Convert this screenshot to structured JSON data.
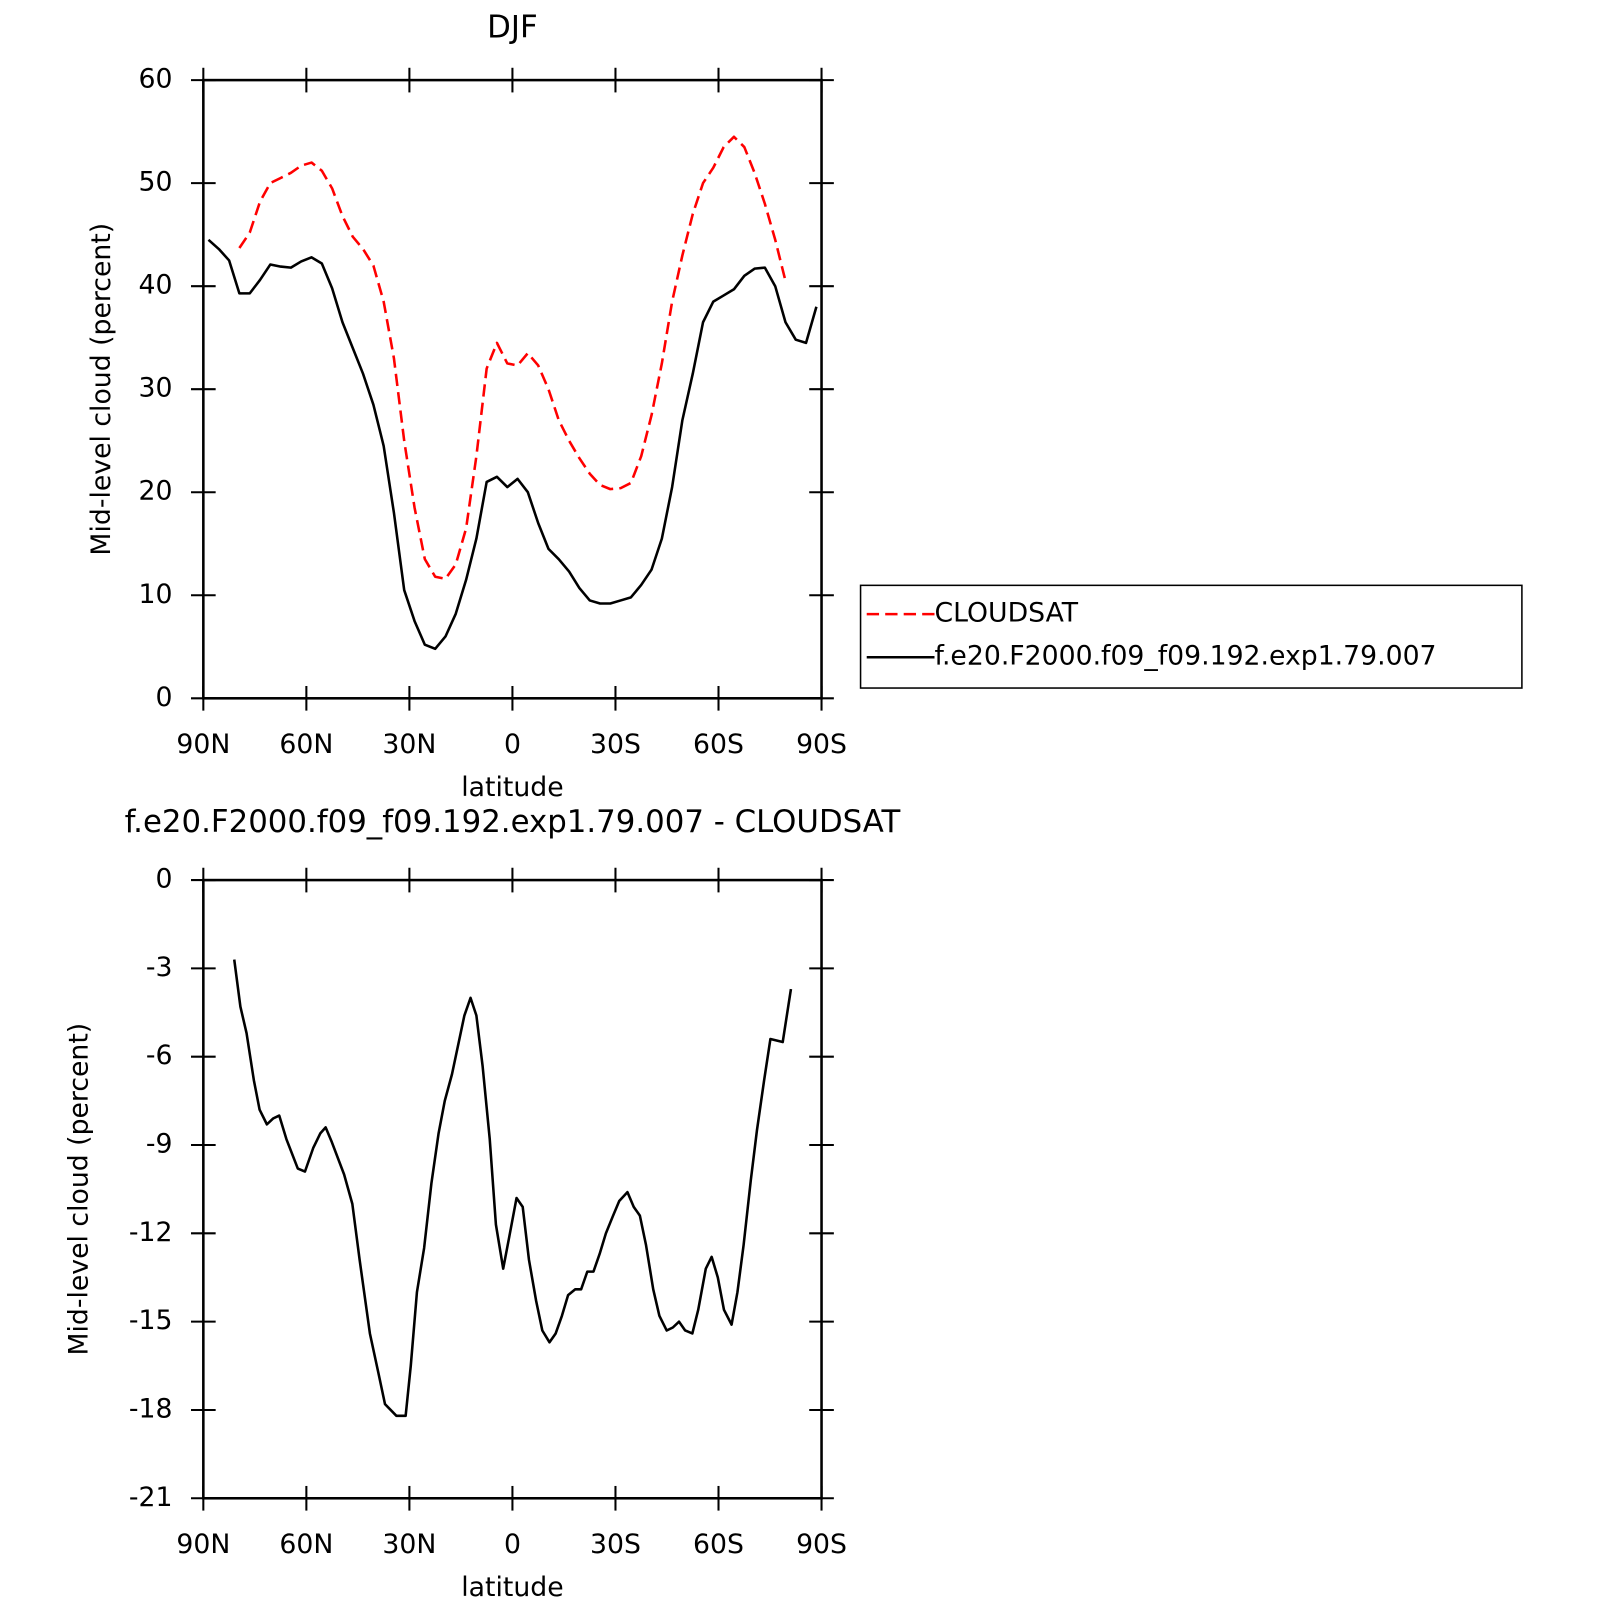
{
  "chart_data": [
    {
      "type": "line",
      "title": "DJF",
      "xlabel": "latitude",
      "ylabel": "Mid-level cloud (percent)",
      "xlim": [
        90,
        -90
      ],
      "xticks": [
        {
          "value": 90,
          "label": "90N"
        },
        {
          "value": 60,
          "label": "60N"
        },
        {
          "value": 30,
          "label": "30N"
        },
        0,
        {
          "value": -30,
          "label": "30S"
        },
        {
          "value": -60,
          "label": "60S"
        },
        {
          "value": -90,
          "label": "90S"
        }
      ],
      "ylim": [
        0,
        60
      ],
      "yticks": [
        0,
        10,
        20,
        30,
        40,
        50,
        60
      ],
      "legend_position": "right",
      "x": [
        88.5,
        85.5,
        82.5,
        79.5,
        76.5,
        73.5,
        70.5,
        67.5,
        64.5,
        61.5,
        58.5,
        55.5,
        52.5,
        49.5,
        46.5,
        43.5,
        40.5,
        37.5,
        34.5,
        31.5,
        28.5,
        25.5,
        22.5,
        19.5,
        16.5,
        13.5,
        10.5,
        7.5,
        4.5,
        1.5,
        -1.5,
        -4.5,
        -7.5,
        -10.5,
        -13.5,
        -16.5,
        -19.5,
        -22.5,
        -25.5,
        -28.5,
        -31.5,
        -34.5,
        -37.5,
        -40.5,
        -43.5,
        -46.5,
        -49.5,
        -52.5,
        -55.5,
        -58.5,
        -61.5,
        -64.5,
        -67.5,
        -70.5,
        -73.5,
        -76.5,
        -79.5,
        -82.5,
        -85.5,
        -88.5
      ],
      "series": [
        {
          "name": "CLOUDSAT",
          "color": "#ff0000",
          "style": "dashed",
          "values": [
            null,
            null,
            null,
            43.7,
            45.2,
            48.2,
            50,
            50.5,
            51,
            51.7,
            52,
            51.2,
            49.5,
            46.8,
            44.8,
            43.6,
            42,
            38.5,
            33,
            25,
            18.5,
            13.5,
            11.8,
            11.6,
            13,
            16.5,
            23.5,
            32,
            34.5,
            32.5,
            32.3,
            33.5,
            32.3,
            30,
            27,
            25,
            23.3,
            21.8,
            20.7,
            20.3,
            20.4,
            20.9,
            23.5,
            27.5,
            32.5,
            38.5,
            43,
            47,
            50,
            51.5,
            53.5,
            54.5,
            53.5,
            51,
            48,
            44.5,
            40.5,
            null,
            null,
            null
          ]
        },
        {
          "name": "f.e20.F2000.f09_f09.192.exp1.79.007",
          "color": "#000000",
          "style": "solid",
          "values": [
            44.5,
            43.6,
            42.5,
            39.3,
            39.3,
            40.6,
            42.1,
            41.9,
            41.8,
            42.4,
            42.8,
            42.2,
            39.8,
            36.5,
            34,
            31.5,
            28.5,
            24.5,
            18,
            10.5,
            7.5,
            5.2,
            4.8,
            6,
            8.2,
            11.5,
            15.5,
            21,
            21.5,
            20.5,
            21.3,
            20,
            17,
            14.5,
            13.5,
            12.3,
            10.7,
            9.5,
            9.2,
            9.2,
            9.5,
            9.8,
            11,
            12.5,
            15.5,
            20.5,
            27,
            31.5,
            36.5,
            38.5,
            39.1,
            39.7,
            41,
            41.7,
            41.8,
            40,
            36.5,
            34.8,
            34.5,
            38
          ]
        }
      ]
    },
    {
      "type": "line",
      "title": "f.e20.F2000.f09_f09.192.exp1.79.007 - CLOUDSAT",
      "xlabel": "latitude",
      "ylabel": "Mid-level cloud (percent)",
      "xlim": [
        90,
        -90
      ],
      "xticks": [
        {
          "value": 90,
          "label": "90N"
        },
        {
          "value": 60,
          "label": "60N"
        },
        {
          "value": 30,
          "label": "30N"
        },
        0,
        {
          "value": -30,
          "label": "30S"
        },
        {
          "value": -60,
          "label": "60S"
        },
        {
          "value": -90,
          "label": "90S"
        }
      ],
      "ylim": [
        -21,
        0
      ],
      "yticks": [
        -21,
        -18,
        -15,
        -12,
        -9,
        -6,
        -3,
        0
      ],
      "color": "#000000",
      "x": [
        81.0,
        79.2,
        77.4,
        75.3,
        73.6,
        71.5,
        69.7,
        67.9,
        65.8,
        62.5,
        60.4,
        58.0,
        55.9,
        54.4,
        52.6,
        49.0,
        46.6,
        44.5,
        41.5,
        39.1,
        37.1,
        33.8,
        31.1,
        29.6,
        27.8,
        25.7,
        23.6,
        21.5,
        19.7,
        17.6,
        14.0,
        12.2,
        10.5,
        8.7,
        6.6,
        4.8,
        2.7,
        0.9,
        -1.2,
        -3.0,
        -4.8,
        -6.9,
        -8.7,
        -10.8,
        -12.6,
        -14.4,
        -16.2,
        -18.3,
        -20.0,
        -21.8,
        -23.6,
        -25.4,
        -27.2,
        -29.3,
        -31.1,
        -33.5,
        -35.3,
        -37.1,
        -38.9,
        -41.0,
        -42.8,
        -44.9,
        -46.7,
        -48.5,
        -50.3,
        -52.4,
        -54.1,
        -56.3,
        -58.0,
        -59.8,
        -61.6,
        -63.8,
        -65.5,
        -67.3,
        -69.4,
        -71.2,
        -73.3,
        -75.1,
        -78.7,
        -81.1
      ],
      "values": [
        -2.7,
        -4.3,
        -5.2,
        -6.8,
        -7.8,
        -8.3,
        -8.1,
        -8.0,
        -8.8,
        -9.8,
        -9.9,
        -9.1,
        -8.6,
        -8.4,
        -8.9,
        -10,
        -11,
        -12.9,
        -15.4,
        -16.7,
        -17.8,
        -18.2,
        -18.2,
        -16.5,
        -14,
        -12.5,
        -10.3,
        -8.6,
        -7.5,
        -6.6,
        -4.6,
        -4.0,
        -4.6,
        -6.3,
        -8.8,
        -11.7,
        -13.2,
        -12.1,
        -10.8,
        -11.1,
        -12.9,
        -14.3,
        -15.3,
        -15.7,
        -15.4,
        -14.8,
        -14.1,
        -13.9,
        -13.9,
        -13.3,
        -13.3,
        -12.7,
        -12.0,
        -11.4,
        -10.9,
        -10.6,
        -11.1,
        -11.4,
        -12.4,
        -13.9,
        -14.8,
        -15.3,
        -15.2,
        -15.0,
        -15.3,
        -15.4,
        -14.6,
        -13.2,
        -12.8,
        -13.5,
        -14.6,
        -15.1,
        -14.0,
        -12.4,
        -10.2,
        -8.5,
        -6.8,
        -5.4,
        -5.5,
        -3.7
      ]
    }
  ]
}
